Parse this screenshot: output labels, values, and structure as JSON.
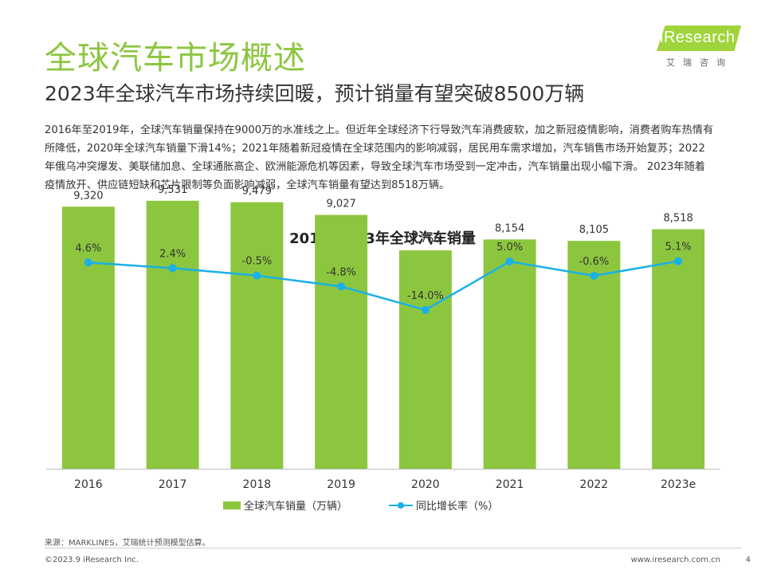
{
  "header": {
    "title": "全球汽车市场概述",
    "subtitle": "2023年全球汽车市场持续回暖，预计销量有望突破8500万辆"
  },
  "logo": {
    "text": "iResearch",
    "sub": "艾瑞咨询",
    "color": "#9fd43a"
  },
  "intro": "2016年至2019年，全球汽车销量保持在9000万的水准线之上。但近年全球经济下行导致汽车消费疲软，加之新冠疫情影响，消费者购车热情有所降低，2020年全球汽车销量下滑14%；2021年随着新冠疫情在全球范围内的影响减弱，居民用车需求增加，汽车销售市场开始复苏；2022年俄乌冲突爆发、美联储加息、全球通胀高企、欧洲能源危机等因素，导致全球汽车市场受到一定冲击，汽车销量出现小幅下滑。 2023年随着疫情放开、供应链短缺和芯片限制等负面影响减弱，全球汽车销量有望达到8518万辆。",
  "chart_data": {
    "type": "bar",
    "title": "2016-2023年全球汽车销量",
    "categories": [
      "2016",
      "2017",
      "2018",
      "2019",
      "2020",
      "2021",
      "2022",
      "2023e"
    ],
    "series": [
      {
        "name": "全球汽车销量（万辆）",
        "type": "bar",
        "values": [
          9320,
          9531,
          9479,
          9027,
          7766,
          8154,
          8105,
          8518
        ],
        "labels": [
          "9,320",
          "9,531",
          "9,479",
          "9,027",
          "7,766",
          "8,154",
          "8,105",
          "8,518"
        ],
        "color": "#8cc63f"
      },
      {
        "name": "同比增长率（%）",
        "type": "line",
        "values": [
          4.6,
          2.4,
          -0.5,
          -4.8,
          -14.0,
          5.0,
          -0.6,
          5.1
        ],
        "labels": [
          "4.6%",
          "2.4%",
          "-0.5%",
          "-4.8%",
          "-14.0%",
          "5.0%",
          "-0.6%",
          "5.1%"
        ],
        "color": "#1ab0e8"
      }
    ],
    "ylim": [
      0,
      11000
    ],
    "y2lim": [
      -80,
      20
    ],
    "grid": false,
    "legend": "bottom"
  },
  "footer": {
    "source": "来源：MARKLINES，艾瑞统计预测模型估算。",
    "copyright": "©2023.9 iResearch Inc.",
    "url": "www.iresearch.com.cn",
    "page": "4"
  }
}
